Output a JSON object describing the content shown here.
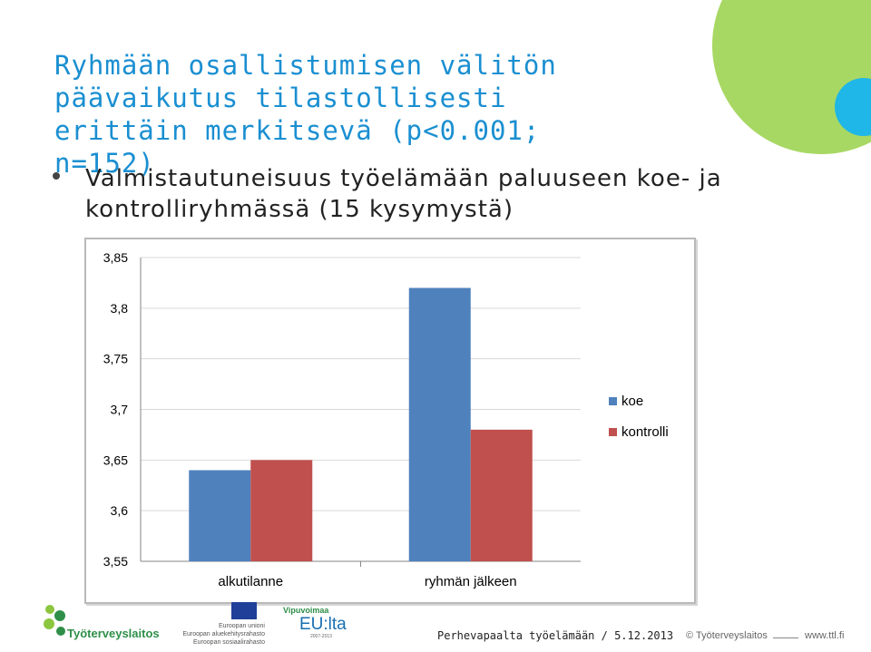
{
  "slide": {
    "title": "Ryhmään osallistumisen välitön päävaikutus tilastollisesti erittäin merkitsevä (p<0.001; n=152)",
    "bullet": "Valmistautuneisuus työelämään paluuseen koe- ja kontrolliryhmässä (15 kysymystä)"
  },
  "colors": {
    "title": "#1a8fd1",
    "koe": "#4f81bd",
    "kontrolli": "#c0504d",
    "deco_green": "#a8d864",
    "deco_cyan": "#1fb6e8"
  },
  "chart_data": {
    "type": "bar",
    "categories": [
      "alkutilanne",
      "ryhmän jälkeen"
    ],
    "series": [
      {
        "name": "koe",
        "values": [
          3.64,
          3.82
        ]
      },
      {
        "name": "kontrolli",
        "values": [
          3.65,
          3.68
        ]
      }
    ],
    "ylim": [
      3.55,
      3.85
    ],
    "yticks": [
      "3,85",
      "3,8",
      "3,75",
      "3,7",
      "3,65",
      "3,6",
      "3,55"
    ],
    "legend_position": "right",
    "grid": "horizontal"
  },
  "footer": {
    "logo_text": "Työterveyslaitos",
    "eu_text_1": "Euroopan unioni",
    "eu_text_2": "Euroopan aluekehitysrahasto",
    "eu_text_3": "Euroopan sosiaalirahasto",
    "vip_title": "Vipuvoimaa",
    "vip_eu": "EU:lta",
    "vip_years": "2007-2013",
    "center": "Perhevapaalta työelämään / 5.12.2013",
    "copyright": "© Työterveyslaitos",
    "url": "www.ttl.fi"
  }
}
